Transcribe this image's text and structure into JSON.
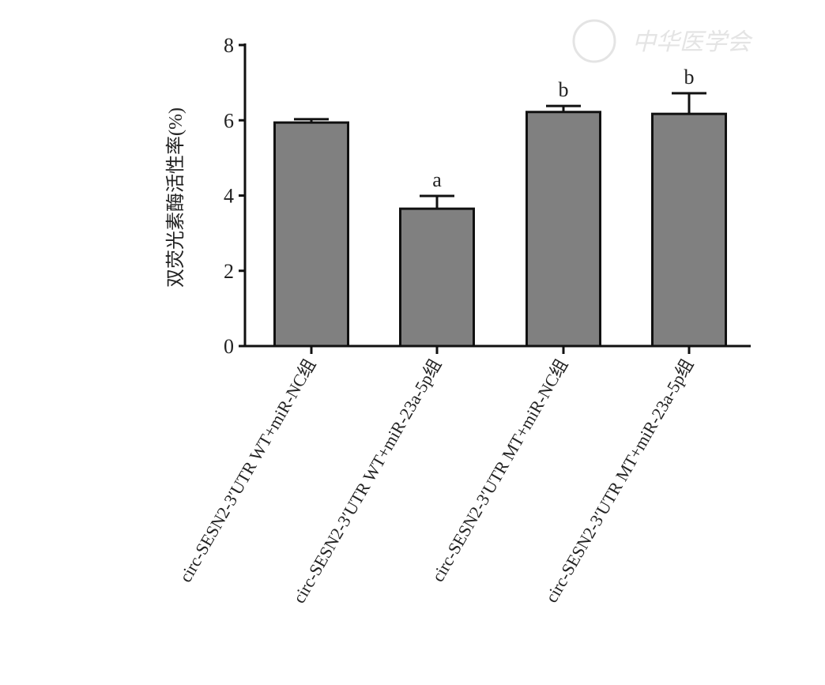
{
  "chart_data": {
    "type": "bar",
    "title": "",
    "xlabel": "",
    "ylabel": "双荧光素酶活性率(%)",
    "ylim": [
      0,
      8
    ],
    "yticks": [
      0,
      2,
      4,
      6,
      8
    ],
    "grid": false,
    "categories": [
      "circ-SESN2-3′UTR WT+miR-NC组",
      "circ-SESN2-3′UTR WT+miR-23a-5p组",
      "circ-SESN2-3′UTR MT+miR-NC组",
      "circ-SESN2-3′UTR MT+miR-23a-5p组"
    ],
    "values": [
      5.94,
      3.65,
      6.22,
      6.17
    ],
    "error_upper": [
      6.03,
      3.99,
      6.38,
      6.72
    ],
    "annotations": [
      "",
      "a",
      "b",
      "b"
    ],
    "bar_color": "#808080",
    "watermark": "中华医学会"
  }
}
